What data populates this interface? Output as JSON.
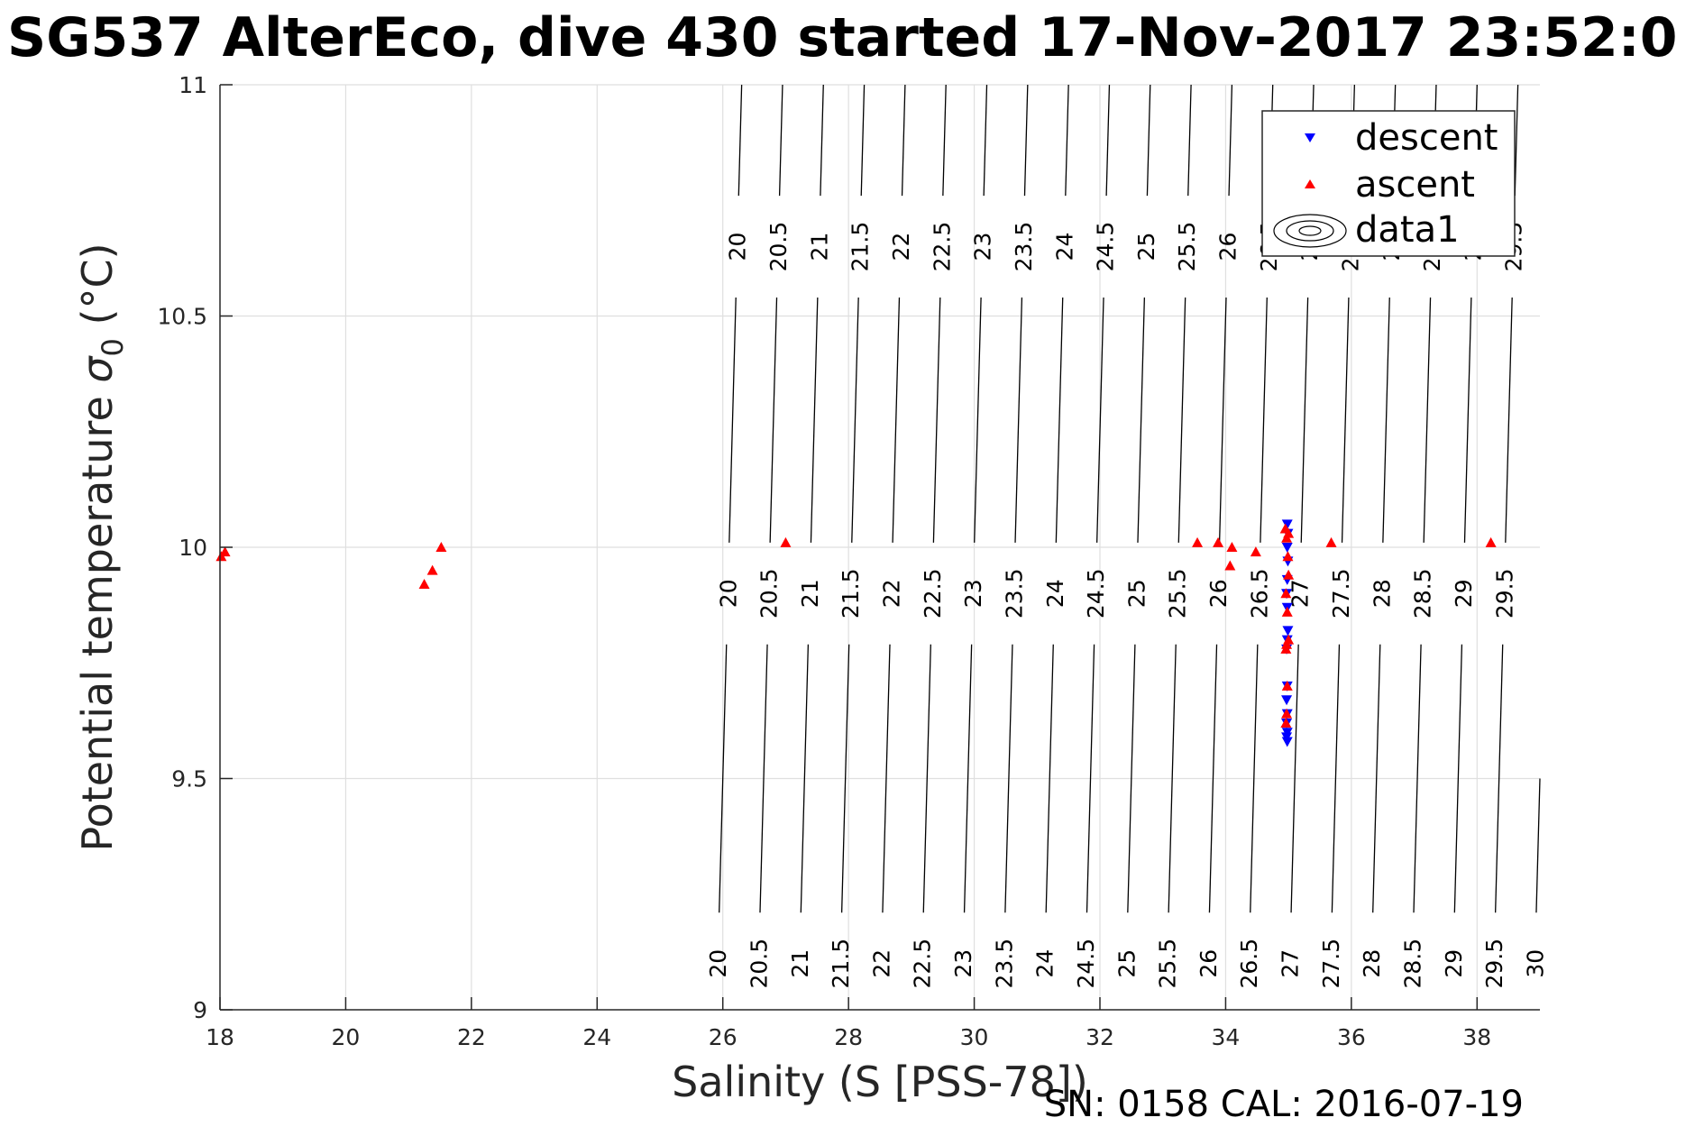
{
  "chart_data": {
    "type": "scatter",
    "title": "SG537 AlterEco, dive 430 started 17-Nov-2017 23:52:0",
    "xlabel": "Salinity (S [PSS-78])",
    "ylabel_main": "Potential temperature ",
    "ylabel_symbol": "σ",
    "ylabel_sub": "0",
    "ylabel_unit": " (°C)",
    "xlim": [
      18,
      39
    ],
    "ylim": [
      9,
      11
    ],
    "x_ticks": [
      18,
      20,
      22,
      24,
      26,
      28,
      30,
      32,
      34,
      36,
      38
    ],
    "y_ticks": [
      9,
      9.5,
      10,
      10.5,
      11
    ],
    "y_tick_labels": [
      "9",
      "9.5",
      "10",
      "10.5",
      "11"
    ],
    "grid": true,
    "legend": {
      "position": "top-right",
      "entries": [
        "descent",
        "ascent",
        "data1"
      ]
    },
    "footer": "SN: 0158  CAL: 2016-07-19",
    "colors": {
      "descent": "#0000ff",
      "ascent": "#ff0000",
      "contour": "#000000",
      "grid": "#dfdfdf"
    },
    "contours": {
      "levels": [
        20,
        20.5,
        21,
        21.5,
        22,
        22.5,
        23,
        23.5,
        24,
        24.5,
        25,
        25.5,
        26,
        26.5,
        27,
        27.5,
        28,
        28.5,
        29,
        29.5,
        30
      ],
      "labels": [
        "20",
        "20.5",
        "21",
        "21.5",
        "22",
        "22.5",
        "23",
        "23.5",
        "24",
        "24.5",
        "25",
        "25.5",
        "26",
        "26.5",
        "27",
        "27.5",
        "28",
        "28.5",
        "29",
        "29.5",
        "30"
      ],
      "salinity_at_bottom": [
        25.9,
        26.55,
        27.2,
        27.85,
        28.5,
        29.15,
        29.8,
        30.45,
        31.1,
        31.75,
        32.4,
        33.05,
        33.7,
        34.35,
        35.0,
        35.65,
        36.3,
        36.95,
        37.6,
        38.25,
        38.9
      ],
      "salinity_at_top": [
        26.3,
        26.95,
        27.6,
        28.25,
        28.9,
        29.55,
        30.2,
        30.85,
        31.5,
        32.15,
        32.8,
        33.45,
        34.1,
        34.75,
        35.4,
        36.05,
        36.7,
        37.35,
        38.0,
        38.65,
        39.3
      ]
    },
    "series": [
      {
        "name": "descent",
        "marker": "triangle-down",
        "points": [
          [
            34.98,
            10.05
          ],
          [
            34.99,
            10.03
          ],
          [
            34.98,
            10.0
          ],
          [
            34.99,
            9.97
          ],
          [
            34.98,
            9.93
          ],
          [
            34.97,
            9.9
          ],
          [
            34.98,
            9.87
          ],
          [
            34.99,
            9.82
          ],
          [
            34.98,
            9.8
          ],
          [
            34.97,
            9.78
          ],
          [
            34.98,
            9.7
          ],
          [
            34.97,
            9.67
          ],
          [
            34.98,
            9.64
          ],
          [
            34.97,
            9.62
          ],
          [
            34.98,
            9.6
          ],
          [
            34.97,
            9.59
          ],
          [
            34.98,
            9.58
          ]
        ]
      },
      {
        "name": "ascent",
        "marker": "triangle-up",
        "points": [
          [
            18.02,
            9.98
          ],
          [
            18.08,
            9.99
          ],
          [
            21.25,
            9.92
          ],
          [
            21.38,
            9.95
          ],
          [
            21.52,
            10.0
          ],
          [
            27.0,
            10.01
          ],
          [
            33.55,
            10.01
          ],
          [
            33.88,
            10.01
          ],
          [
            34.1,
            10.0
          ],
          [
            34.07,
            9.96
          ],
          [
            34.48,
            9.99
          ],
          [
            34.95,
            10.04
          ],
          [
            35.0,
            10.03
          ],
          [
            34.97,
            10.02
          ],
          [
            34.99,
            9.98
          ],
          [
            35.0,
            9.94
          ],
          [
            34.96,
            9.9
          ],
          [
            34.98,
            9.86
          ],
          [
            35.0,
            9.8
          ],
          [
            34.97,
            9.79
          ],
          [
            34.96,
            9.78
          ],
          [
            34.98,
            9.7
          ],
          [
            34.97,
            9.64
          ],
          [
            34.96,
            9.62
          ],
          [
            35.68,
            10.01
          ],
          [
            38.22,
            10.01
          ]
        ]
      }
    ]
  }
}
